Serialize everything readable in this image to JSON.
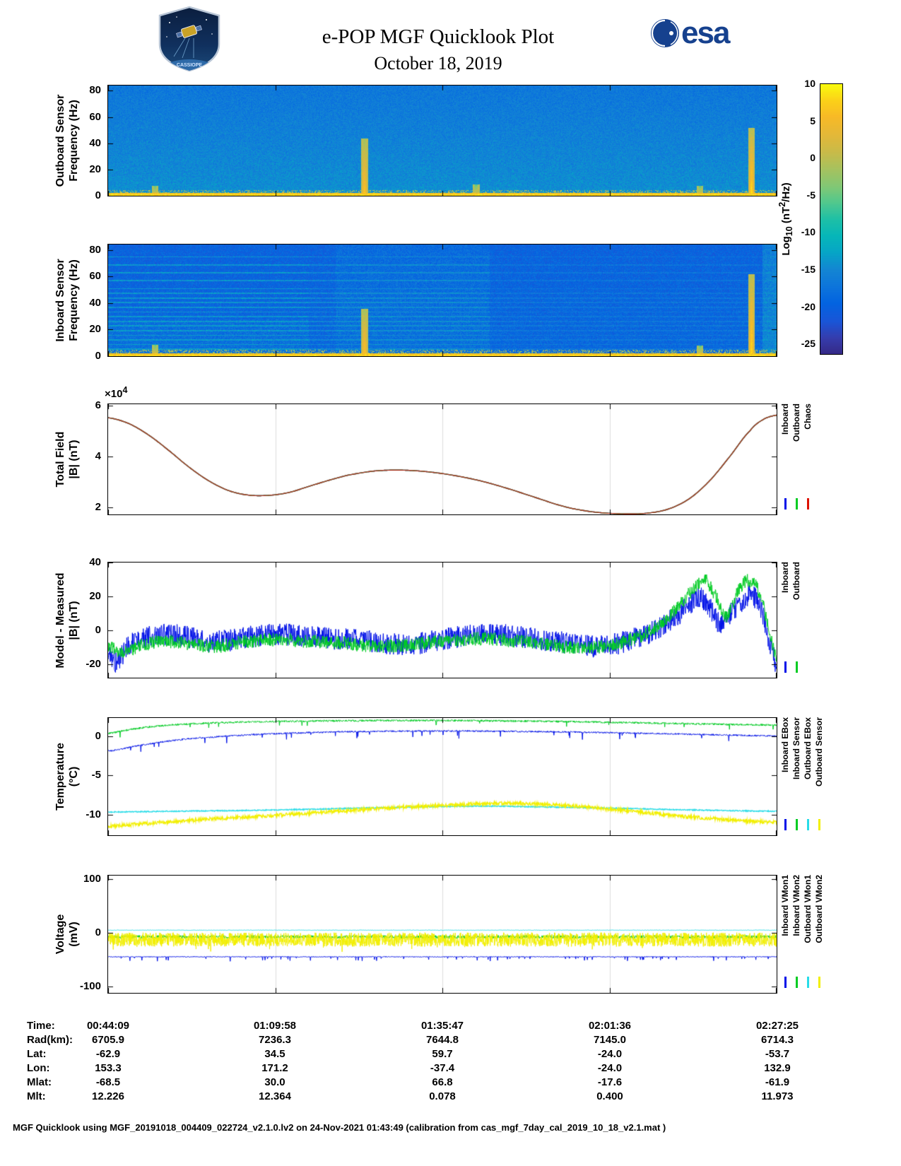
{
  "header": {
    "title": "e-POP MGF Quicklook Plot",
    "date": "October 18, 2019",
    "esa_wordmark": "esa",
    "mission_patch": "CASSIOPE",
    "patch_text": "CASSIOPE"
  },
  "colorbar": {
    "label_prefix": "Log",
    "label_sub": "10",
    "label_mid": " (nT",
    "label_sup": "2",
    "label_suffix": "/Hz)",
    "ticks": [
      "10",
      "5",
      "0",
      "-5",
      "-10",
      "-15",
      "-20",
      "-25"
    ],
    "vmax": 10,
    "vmin": -26.5
  },
  "chart_data": [
    {
      "id": "outboard_spectrogram",
      "type": "heatmap",
      "ylabel": [
        "Outboard Sensor",
        "Frequency (Hz)"
      ],
      "x_range": [
        "00:44:09",
        "02:27:25"
      ],
      "ylim": [
        0,
        84
      ],
      "yticks": [
        0,
        20,
        40,
        60,
        80
      ],
      "colormap": "parula",
      "clim": [
        -26.5,
        10
      ],
      "background_level": -14.5,
      "noise_level": 2.0,
      "top_darkening": 2.5,
      "low_band": {
        "f_max": 2.6,
        "level": 6.5,
        "spread": 2.2
      },
      "speckle_band": {
        "f_min": 2.6,
        "f_max": 4.4,
        "level": -1,
        "density": 0.3
      },
      "bursts": [
        {
          "t": 0.383,
          "f_max": 44,
          "level": 8
        },
        {
          "t": 0.962,
          "f_max": 52,
          "level": 9.5
        },
        {
          "t": 0.07,
          "f_max": 8,
          "level": 4
        },
        {
          "t": 0.55,
          "f_max": 9,
          "level": 3
        },
        {
          "t": 0.885,
          "f_max": 8,
          "level": 3.5
        }
      ],
      "seed": 42
    },
    {
      "id": "inboard_spectrogram",
      "type": "heatmap",
      "ylabel": [
        "Inboard Sensor",
        "Frequency (Hz)"
      ],
      "x_range": [
        "00:44:09",
        "02:27:25"
      ],
      "ylim": [
        0,
        84
      ],
      "yticks": [
        0,
        20,
        40,
        60,
        80
      ],
      "colormap": "parula",
      "clim": [
        -26.5,
        10
      ],
      "background_level": -19,
      "noise_level": 2.3,
      "top_darkening": 0.8,
      "low_band": {
        "f_max": 2.6,
        "level": 6.5,
        "spread": 2.2
      },
      "speckle_band": {
        "f_min": 2.6,
        "f_max": 5,
        "level": -1.5,
        "density": 0.3
      },
      "interference_lines": [
        5.5,
        9,
        12.5,
        16,
        19.5,
        23,
        26.5,
        30,
        33.5,
        37,
        40.5,
        44,
        47.5,
        51,
        57,
        63,
        69,
        75
      ],
      "line_level": -10.5,
      "bright_region": [
        0.34,
        0.57
      ],
      "left_clutter": {
        "t_max": 0.3,
        "f_max": 28
      },
      "right_edge_boost": {
        "t_min": 0.978,
        "level": 3.5
      },
      "bursts": [
        {
          "t": 0.383,
          "f_max": 36,
          "level": 8
        },
        {
          "t": 0.962,
          "f_max": 62,
          "level": 9.5
        },
        {
          "t": 0.07,
          "f_max": 9,
          "level": 4
        },
        {
          "t": 0.885,
          "f_max": 8,
          "level": 3.5
        }
      ],
      "seed": 1337
    },
    {
      "id": "total_field",
      "type": "line",
      "ylabel": [
        "Total Field",
        "|B| (nT)"
      ],
      "y_offset_label": {
        "times": "×10",
        "exp": "4"
      },
      "ylim": [
        1.72,
        6.05
      ],
      "yticks": [
        2,
        4,
        6
      ],
      "grid": true,
      "seed": 3,
      "points": [
        [
          0,
          5.52
        ],
        [
          0.03,
          5.3
        ],
        [
          0.06,
          4.85
        ],
        [
          0.09,
          4.25
        ],
        [
          0.12,
          3.6
        ],
        [
          0.15,
          3.05
        ],
        [
          0.18,
          2.66
        ],
        [
          0.21,
          2.48
        ],
        [
          0.24,
          2.47
        ],
        [
          0.27,
          2.58
        ],
        [
          0.3,
          2.82
        ],
        [
          0.33,
          3.06
        ],
        [
          0.36,
          3.27
        ],
        [
          0.4,
          3.43
        ],
        [
          0.44,
          3.46
        ],
        [
          0.48,
          3.39
        ],
        [
          0.52,
          3.24
        ],
        [
          0.56,
          3.02
        ],
        [
          0.6,
          2.72
        ],
        [
          0.64,
          2.38
        ],
        [
          0.68,
          2.05
        ],
        [
          0.71,
          1.88
        ],
        [
          0.74,
          1.78
        ],
        [
          0.78,
          1.74
        ],
        [
          0.81,
          1.78
        ],
        [
          0.84,
          1.95
        ],
        [
          0.87,
          2.35
        ],
        [
          0.9,
          3.05
        ],
        [
          0.93,
          4.0
        ],
        [
          0.96,
          5.0
        ],
        [
          0.98,
          5.45
        ],
        [
          1,
          5.62
        ]
      ],
      "series": [
        {
          "name": "Inboard",
          "color": "#0010e8",
          "lw": 1.4
        },
        {
          "name": "Outboard",
          "color": "#00cc22",
          "lw": 1.4
        },
        {
          "name": "Chaos",
          "color": "#b5341f",
          "lw": 1.4
        }
      ],
      "legend": [
        {
          "label": "Inboard",
          "color": "#0010e8"
        },
        {
          "label": "Outboard",
          "color": "#00cc22"
        },
        {
          "label": "Chaos",
          "color": "#dd1100"
        }
      ]
    },
    {
      "id": "model_minus_measured",
      "type": "line",
      "ylabel": [
        "Model - Measured",
        "|B| (nT)"
      ],
      "ylim": [
        -28,
        40
      ],
      "yticks": [
        -20,
        0,
        20,
        40
      ],
      "grid": true,
      "seed": 4,
      "series": [
        {
          "name": "Inboard",
          "color": "#0010e8",
          "lw": 1,
          "noise": 6.5,
          "points": [
            [
              0,
              -13
            ],
            [
              0.012,
              -19
            ],
            [
              0.03,
              -9
            ],
            [
              0.06,
              -4
            ],
            [
              0.09,
              -2.5
            ],
            [
              0.12,
              -4
            ],
            [
              0.15,
              -6.5
            ],
            [
              0.18,
              -6
            ],
            [
              0.22,
              -3.5
            ],
            [
              0.26,
              -2.5
            ],
            [
              0.3,
              -3.5
            ],
            [
              0.34,
              -5
            ],
            [
              0.38,
              -6
            ],
            [
              0.42,
              -8
            ],
            [
              0.46,
              -8
            ],
            [
              0.5,
              -5.5
            ],
            [
              0.54,
              -3
            ],
            [
              0.58,
              -2.5
            ],
            [
              0.62,
              -4
            ],
            [
              0.66,
              -6
            ],
            [
              0.7,
              -8.5
            ],
            [
              0.73,
              -9.5
            ],
            [
              0.76,
              -8
            ],
            [
              0.79,
              -4.5
            ],
            [
              0.82,
              0.5
            ],
            [
              0.85,
              8
            ],
            [
              0.87,
              15
            ],
            [
              0.885,
              19
            ],
            [
              0.9,
              13
            ],
            [
              0.915,
              4
            ],
            [
              0.93,
              9
            ],
            [
              0.945,
              16
            ],
            [
              0.958,
              21
            ],
            [
              0.968,
              19
            ],
            [
              0.978,
              10
            ],
            [
              0.988,
              -4
            ],
            [
              1,
              -21
            ]
          ]
        },
        {
          "name": "Outboard",
          "color": "#00cc22",
          "lw": 1,
          "noise": 4,
          "points": [
            [
              0,
              -9
            ],
            [
              0.02,
              -13
            ],
            [
              0.05,
              -9
            ],
            [
              0.08,
              -6.5
            ],
            [
              0.12,
              -8
            ],
            [
              0.16,
              -9.5
            ],
            [
              0.2,
              -7
            ],
            [
              0.25,
              -5.5
            ],
            [
              0.3,
              -6.5
            ],
            [
              0.35,
              -7.5
            ],
            [
              0.4,
              -9.5
            ],
            [
              0.45,
              -8.5
            ],
            [
              0.5,
              -6.5
            ],
            [
              0.55,
              -5
            ],
            [
              0.6,
              -6
            ],
            [
              0.65,
              -8
            ],
            [
              0.7,
              -10.5
            ],
            [
              0.75,
              -9
            ],
            [
              0.8,
              -3
            ],
            [
              0.83,
              5
            ],
            [
              0.86,
              17
            ],
            [
              0.88,
              26
            ],
            [
              0.893,
              30
            ],
            [
              0.91,
              19
            ],
            [
              0.925,
              8
            ],
            [
              0.94,
              21
            ],
            [
              0.953,
              29
            ],
            [
              0.965,
              28
            ],
            [
              0.975,
              21
            ],
            [
              0.985,
              6
            ],
            [
              1,
              -16
            ]
          ]
        }
      ],
      "legend": [
        {
          "label": "Inboard",
          "color": "#0010e8"
        },
        {
          "label": "Outboard",
          "color": "#00cc22"
        }
      ]
    },
    {
      "id": "temperature",
      "type": "line",
      "ylabel": [
        "Temperature",
        "(°C)"
      ],
      "ylim": [
        -12.6,
        2.3
      ],
      "yticks": [
        -10,
        -5,
        0
      ],
      "grid": true,
      "seed": 5,
      "series": [
        {
          "name": "Inboard EBox",
          "color": "#0010e8",
          "lw": 1,
          "noise": 0.1,
          "spikes": {
            "rate": 0.012,
            "amp": -0.9
          },
          "points": [
            [
              0,
              -1.9
            ],
            [
              0.04,
              -1.3
            ],
            [
              0.08,
              -0.75
            ],
            [
              0.12,
              -0.35
            ],
            [
              0.17,
              -0.05
            ],
            [
              0.22,
              0.2
            ],
            [
              0.3,
              0.45
            ],
            [
              0.4,
              0.6
            ],
            [
              0.5,
              0.65
            ],
            [
              0.6,
              0.6
            ],
            [
              0.7,
              0.5
            ],
            [
              0.8,
              0.35
            ],
            [
              0.9,
              0.18
            ],
            [
              1,
              0.02
            ]
          ]
        },
        {
          "name": "Inboard Sensor",
          "color": "#00cc22",
          "lw": 1,
          "noise": 0.12,
          "spikes": {
            "rate": 0.01,
            "amp": -0.7
          },
          "points": [
            [
              0,
              0.35
            ],
            [
              0.03,
              0.8
            ],
            [
              0.06,
              1.15
            ],
            [
              0.1,
              1.45
            ],
            [
              0.15,
              1.65
            ],
            [
              0.2,
              1.78
            ],
            [
              0.3,
              1.9
            ],
            [
              0.4,
              1.97
            ],
            [
              0.5,
              1.98
            ],
            [
              0.6,
              1.92
            ],
            [
              0.7,
              1.82
            ],
            [
              0.8,
              1.68
            ],
            [
              0.9,
              1.52
            ],
            [
              1,
              1.4
            ]
          ]
        },
        {
          "name": "Outboard EBox",
          "color": "#28dce8",
          "lw": 1.2,
          "noise": 0.07,
          "points": [
            [
              0,
              -9.65
            ],
            [
              0.1,
              -9.55
            ],
            [
              0.2,
              -9.45
            ],
            [
              0.3,
              -9.3
            ],
            [
              0.4,
              -9.1
            ],
            [
              0.5,
              -8.95
            ],
            [
              0.57,
              -8.9
            ],
            [
              0.65,
              -9
            ],
            [
              0.75,
              -9.15
            ],
            [
              0.85,
              -9.35
            ],
            [
              1,
              -9.55
            ]
          ]
        },
        {
          "name": "Outboard Sensor",
          "color": "#f2ef00",
          "lw": 1.2,
          "noise": 0.22,
          "points": [
            [
              0,
              -11.45
            ],
            [
              0.05,
              -11.15
            ],
            [
              0.1,
              -10.85
            ],
            [
              0.15,
              -10.55
            ],
            [
              0.2,
              -10.3
            ],
            [
              0.28,
              -9.9
            ],
            [
              0.36,
              -9.45
            ],
            [
              0.44,
              -9.05
            ],
            [
              0.52,
              -8.75
            ],
            [
              0.58,
              -8.55
            ],
            [
              0.63,
              -8.6
            ],
            [
              0.68,
              -8.8
            ],
            [
              0.74,
              -9.2
            ],
            [
              0.8,
              -9.7
            ],
            [
              0.86,
              -10.2
            ],
            [
              0.92,
              -10.6
            ],
            [
              1,
              -10.95
            ]
          ]
        }
      ],
      "legend": [
        {
          "label": "Inboard EBox",
          "color": "#0010e8"
        },
        {
          "label": "Inboard Sensor",
          "color": "#00cc22"
        },
        {
          "label": "Outboard EBox",
          "color": "#28dce8"
        },
        {
          "label": "Outboard Sensor",
          "color": "#f2ef00"
        }
      ]
    },
    {
      "id": "voltage",
      "type": "line",
      "ylabel": [
        "Voltage",
        "(mV)"
      ],
      "ylim": [
        -112,
        106
      ],
      "yticks": [
        -100,
        0,
        100
      ],
      "grid": true,
      "seed": 6,
      "series": [
        {
          "name": "Inboard VMon2",
          "color": "#00cc22",
          "lw": 1,
          "noise": 3,
          "points": [
            [
              0,
              -8
            ],
            [
              1,
              -8
            ]
          ]
        },
        {
          "name": "Outboard VMon2",
          "color": "#f2ef00",
          "lw": 1,
          "noise": 13,
          "samples": 2600,
          "spikes": {
            "rate": 0.02,
            "amp": -12
          },
          "points": [
            [
              0,
              -13
            ],
            [
              1,
              -13
            ]
          ]
        },
        {
          "name": "Outboard VMon1",
          "color": "#28dce8",
          "lw": 1,
          "noise": 0.5,
          "points": [
            [
              0,
              4.5
            ],
            [
              1,
              4.5
            ]
          ]
        },
        {
          "name": "Inboard VMon1",
          "color": "#0010e8",
          "lw": 1,
          "noise": 0.7,
          "spikes": {
            "rate": 0.035,
            "amp": -8
          },
          "points": [
            [
              0,
              -45
            ],
            [
              1,
              -45
            ]
          ]
        }
      ],
      "legend": [
        {
          "label": "Inboard VMon1",
          "color": "#0010e8"
        },
        {
          "label": "Inboard VMon2",
          "color": "#00cc22"
        },
        {
          "label": "Outboard VMon1",
          "color": "#28dce8"
        },
        {
          "label": "Outboard VMon2",
          "color": "#f2ef00"
        }
      ]
    }
  ],
  "table": {
    "rows": [
      {
        "label": "Time:",
        "values": [
          "00:44:09",
          "01:09:58",
          "01:35:47",
          "02:01:36",
          "02:27:25"
        ]
      },
      {
        "label": "Rad(km):",
        "values": [
          "6705.9",
          "7236.3",
          "7644.8",
          "7145.0",
          "6714.3"
        ]
      },
      {
        "label": "Lat:",
        "values": [
          "-62.9",
          "34.5",
          "59.7",
          "-24.0",
          "-53.7"
        ]
      },
      {
        "label": "Lon:",
        "values": [
          "153.3",
          "171.2",
          "-37.4",
          "-24.0",
          "132.9"
        ]
      },
      {
        "label": "Mlat:",
        "values": [
          "-68.5",
          "30.0",
          "66.8",
          "-17.6",
          "-61.9"
        ]
      },
      {
        "label": "Mlt:",
        "values": [
          "12.226",
          "12.364",
          "0.078",
          "0.400",
          "11.973"
        ]
      }
    ]
  },
  "footer": "MGF Quicklook using MGF_20191018_004409_022724_v2.1.0.lv2 on 24-Nov-2021 01:43:49 (calibration from cas_mgf_7day_cal_2019_10_18_v2.1.mat )"
}
